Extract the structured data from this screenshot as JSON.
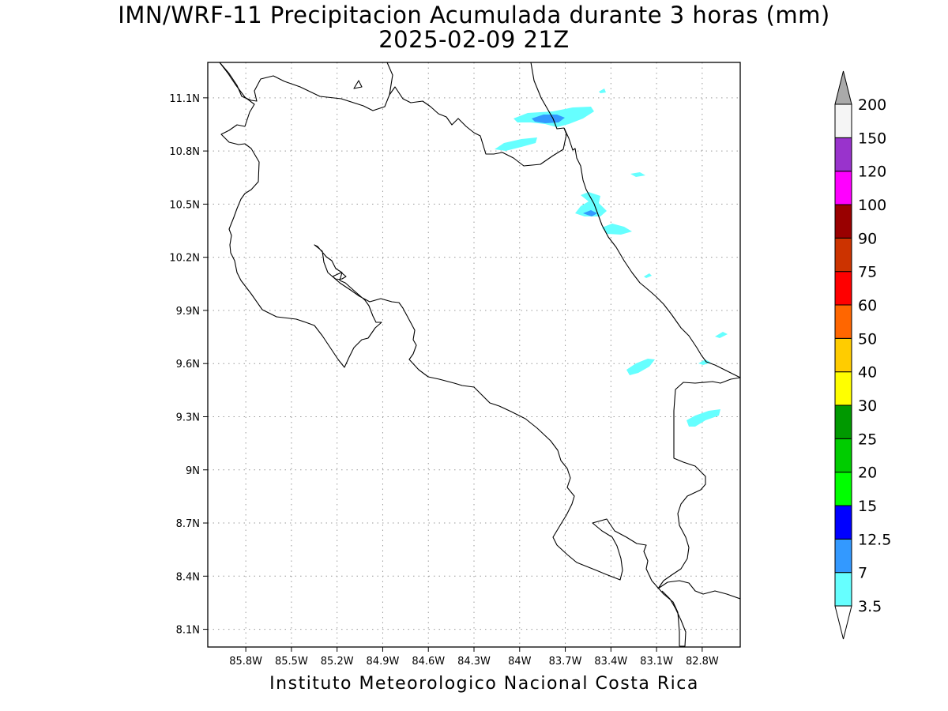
{
  "title_line1": "IMN/WRF-11 Precipitacion Acumulada durante 3 horas (mm)",
  "title_line2": "2025-02-09 21Z",
  "footer": "Instituto Meteorologico Nacional Costa Rica",
  "map": {
    "lon_range": [
      -86.05,
      -82.55
    ],
    "lat_range": [
      8.0,
      11.3
    ],
    "lon_ticks": [
      -85.8,
      -85.5,
      -85.2,
      -84.9,
      -84.6,
      -84.3,
      -84.0,
      -83.7,
      -83.4,
      -83.1,
      -82.8
    ],
    "lon_tick_labels": [
      "85.8W",
      "85.5W",
      "85.2W",
      "84.9W",
      "84.6W",
      "84.3W",
      "84W",
      "83.7W",
      "83.4W",
      "83.1W",
      "82.8W"
    ],
    "lat_ticks": [
      8.1,
      8.4,
      8.7,
      9.0,
      9.3,
      9.6,
      9.9,
      10.2,
      10.5,
      10.8,
      11.1
    ],
    "lat_tick_labels": [
      "8.1N",
      "8.4N",
      "8.7N",
      "9N",
      "9.3N",
      "9.6N",
      "9.9N",
      "10.2N",
      "10.5N",
      "10.8N",
      "11.1N"
    ],
    "grid": true
  },
  "colorbar": {
    "levels": [
      "3.5",
      "7",
      "12.5",
      "15",
      "20",
      "25",
      "30",
      "40",
      "50",
      "60",
      "75",
      "90",
      "100",
      "120",
      "150",
      "200"
    ],
    "colors": [
      "#66ffff",
      "#3399ff",
      "#0000ff",
      "#00ff00",
      "#00cc00",
      "#009900",
      "#ffff00",
      "#ffcc00",
      "#ff6600",
      "#ff0000",
      "#cc3300",
      "#990000",
      "#ff00ff",
      "#9933cc",
      "#f5f5f5"
    ],
    "over_color": "#aaaaaa",
    "under_color": "#ffffff"
  },
  "colors": {
    "rain_light": "#66ffff",
    "rain_moderate": "#3399ff"
  }
}
